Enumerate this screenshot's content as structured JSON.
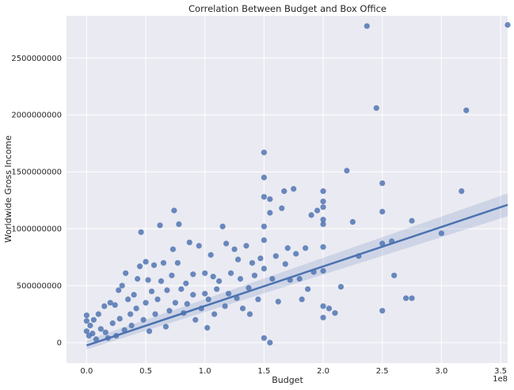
{
  "chart_data": {
    "type": "scatter",
    "title": "Correlation Between Budget and Box Office",
    "xlabel": "Budget",
    "ylabel": "Worldwide Gross Income",
    "x_offset_label": "1e8",
    "xlim": [
      -0.17,
      3.56
    ],
    "ylim": [
      -180000000,
      2870000000
    ],
    "x_ticks": [
      "0.0",
      "0.5",
      "1.0",
      "1.5",
      "2.0",
      "2.5",
      "3.0",
      "3.5"
    ],
    "y_ticks": [
      "0",
      "500000000",
      "1000000000",
      "1500000000",
      "2000000000",
      "2500000000"
    ],
    "grid": true,
    "background": "#eaeaf2",
    "colors": {
      "points": "#4c72b0",
      "line": "#4c72b0",
      "band": "#4c72b0"
    },
    "regression": {
      "x": [
        0,
        3.56
      ],
      "y": [
        -25000000,
        1210000000
      ],
      "ci_upper": [
        20000000,
        1310000000
      ],
      "ci_lower": [
        -60000000,
        1110000000
      ]
    },
    "points": [
      [
        0.0,
        100000000
      ],
      [
        0.0,
        190000000
      ],
      [
        0.0,
        240000000
      ],
      [
        0.02,
        60000000
      ],
      [
        0.03,
        150000000
      ],
      [
        0.05,
        80000000
      ],
      [
        0.06,
        200000000
      ],
      [
        0.08,
        30000000
      ],
      [
        0.1,
        250000000
      ],
      [
        0.12,
        120000000
      ],
      [
        0.15,
        320000000
      ],
      [
        0.16,
        90000000
      ],
      [
        0.18,
        40000000
      ],
      [
        0.2,
        350000000
      ],
      [
        0.22,
        170000000
      ],
      [
        0.24,
        330000000
      ],
      [
        0.25,
        60000000
      ],
      [
        0.27,
        460000000
      ],
      [
        0.28,
        210000000
      ],
      [
        0.3,
        500000000
      ],
      [
        0.32,
        110000000
      ],
      [
        0.33,
        610000000
      ],
      [
        0.35,
        380000000
      ],
      [
        0.37,
        250000000
      ],
      [
        0.38,
        150000000
      ],
      [
        0.4,
        420000000
      ],
      [
        0.42,
        300000000
      ],
      [
        0.43,
        560000000
      ],
      [
        0.45,
        670000000
      ],
      [
        0.46,
        970000000
      ],
      [
        0.48,
        200000000
      ],
      [
        0.5,
        710000000
      ],
      [
        0.5,
        350000000
      ],
      [
        0.52,
        550000000
      ],
      [
        0.53,
        100000000
      ],
      [
        0.55,
        450000000
      ],
      [
        0.57,
        680000000
      ],
      [
        0.58,
        250000000
      ],
      [
        0.6,
        380000000
      ],
      [
        0.62,
        1030000000
      ],
      [
        0.63,
        540000000
      ],
      [
        0.65,
        700000000
      ],
      [
        0.67,
        140000000
      ],
      [
        0.68,
        460000000
      ],
      [
        0.7,
        280000000
      ],
      [
        0.72,
        590000000
      ],
      [
        0.73,
        820000000
      ],
      [
        0.74,
        1160000000
      ],
      [
        0.75,
        350000000
      ],
      [
        0.77,
        700000000
      ],
      [
        0.78,
        1040000000
      ],
      [
        0.8,
        470000000
      ],
      [
        0.82,
        260000000
      ],
      [
        0.84,
        520000000
      ],
      [
        0.85,
        340000000
      ],
      [
        0.87,
        880000000
      ],
      [
        0.9,
        600000000
      ],
      [
        0.9,
        420000000
      ],
      [
        0.92,
        200000000
      ],
      [
        0.95,
        850000000
      ],
      [
        0.97,
        300000000
      ],
      [
        1.0,
        610000000
      ],
      [
        1.0,
        430000000
      ],
      [
        1.02,
        130000000
      ],
      [
        1.03,
        380000000
      ],
      [
        1.05,
        770000000
      ],
      [
        1.07,
        580000000
      ],
      [
        1.08,
        250000000
      ],
      [
        1.1,
        470000000
      ],
      [
        1.12,
        540000000
      ],
      [
        1.15,
        1020000000
      ],
      [
        1.17,
        320000000
      ],
      [
        1.18,
        870000000
      ],
      [
        1.2,
        430000000
      ],
      [
        1.22,
        610000000
      ],
      [
        1.25,
        820000000
      ],
      [
        1.27,
        390000000
      ],
      [
        1.28,
        730000000
      ],
      [
        1.3,
        560000000
      ],
      [
        1.32,
        300000000
      ],
      [
        1.35,
        850000000
      ],
      [
        1.37,
        480000000
      ],
      [
        1.38,
        250000000
      ],
      [
        1.4,
        700000000
      ],
      [
        1.42,
        590000000
      ],
      [
        1.45,
        380000000
      ],
      [
        1.47,
        740000000
      ],
      [
        1.5,
        1670000000
      ],
      [
        1.5,
        1450000000
      ],
      [
        1.5,
        1280000000
      ],
      [
        1.5,
        1020000000
      ],
      [
        1.5,
        900000000
      ],
      [
        1.5,
        650000000
      ],
      [
        1.5,
        40000000
      ],
      [
        1.55,
        0
      ],
      [
        1.55,
        1140000000
      ],
      [
        1.55,
        1260000000
      ],
      [
        1.57,
        560000000
      ],
      [
        1.6,
        760000000
      ],
      [
        1.62,
        360000000
      ],
      [
        1.65,
        1180000000
      ],
      [
        1.67,
        1330000000
      ],
      [
        1.68,
        690000000
      ],
      [
        1.7,
        830000000
      ],
      [
        1.72,
        550000000
      ],
      [
        1.75,
        1350000000
      ],
      [
        1.77,
        780000000
      ],
      [
        1.8,
        560000000
      ],
      [
        1.82,
        380000000
      ],
      [
        1.85,
        830000000
      ],
      [
        1.87,
        470000000
      ],
      [
        1.9,
        1120000000
      ],
      [
        1.92,
        620000000
      ],
      [
        1.95,
        1160000000
      ],
      [
        2.0,
        1330000000
      ],
      [
        2.0,
        1240000000
      ],
      [
        2.0,
        1190000000
      ],
      [
        2.0,
        1080000000
      ],
      [
        2.0,
        1040000000
      ],
      [
        2.0,
        840000000
      ],
      [
        2.0,
        630000000
      ],
      [
        2.0,
        320000000
      ],
      [
        2.0,
        220000000
      ],
      [
        2.05,
        300000000
      ],
      [
        2.1,
        260000000
      ],
      [
        2.15,
        490000000
      ],
      [
        2.2,
        1510000000
      ],
      [
        2.25,
        1060000000
      ],
      [
        2.3,
        760000000
      ],
      [
        2.37,
        2780000000
      ],
      [
        2.45,
        2060000000
      ],
      [
        2.5,
        1400000000
      ],
      [
        2.5,
        1150000000
      ],
      [
        2.5,
        870000000
      ],
      [
        2.5,
        280000000
      ],
      [
        2.58,
        890000000
      ],
      [
        2.6,
        590000000
      ],
      [
        2.7,
        390000000
      ],
      [
        2.75,
        1070000000
      ],
      [
        2.75,
        390000000
      ],
      [
        3.0,
        960000000
      ],
      [
        3.17,
        1330000000
      ],
      [
        3.21,
        2040000000
      ],
      [
        3.56,
        2790000000
      ]
    ]
  }
}
